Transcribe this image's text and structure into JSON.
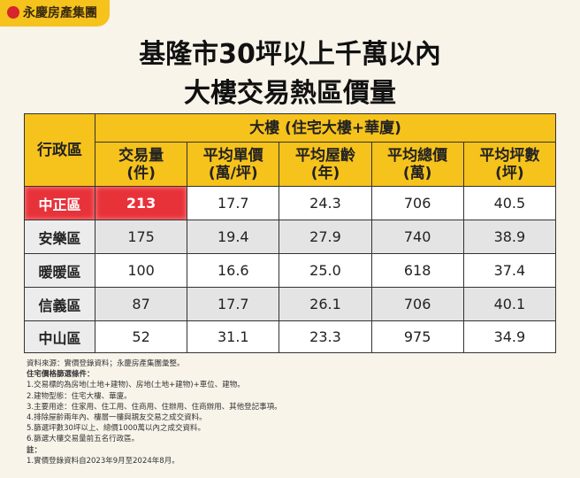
{
  "logo": "永慶房產集團",
  "title": [
    "基隆市30坪以上千萬以內",
    "大樓交易熱區價量"
  ],
  "table": {
    "district_header": "行政區",
    "group_header": "大樓 (住宅大樓+華廈)",
    "columns": [
      [
        "交易量",
        "(件)"
      ],
      [
        "平均單價",
        "(萬/坪)"
      ],
      [
        "平均屋齡",
        "(年)"
      ],
      [
        "平均總價",
        "(萬)"
      ],
      [
        "平均坪數",
        "(坪)"
      ]
    ],
    "rows": [
      [
        "中正區",
        "213",
        "17.7",
        "24.3",
        "706",
        "40.5"
      ],
      [
        "安樂區",
        "175",
        "19.4",
        "27.9",
        "740",
        "38.9"
      ],
      [
        "暖暖區",
        "100",
        "16.6",
        "25.0",
        "618",
        "37.4"
      ],
      [
        "信義區",
        "87",
        "17.7",
        "26.1",
        "706",
        "40.1"
      ],
      [
        "中山區",
        "52",
        "31.1",
        "23.3",
        "975",
        "34.9"
      ]
    ]
  },
  "notes": {
    "source": "資料來源：實價登錄資料；永慶房產集團彙整。",
    "criteria_title": "住宅價格篩選條件：",
    "criteria": [
      "1.交易標的為房地(土地+建物)、房地(土地+建物)+車位、建物。",
      "2.建物型態：住宅大樓、華廈。",
      "3.主要用途：住家用、住工用、住商用、住辦用、住商辦用、其他登記事項。",
      "4.排除屋齡兩年內、樓層一樓與親友交易之成交資料。",
      "5.篩選坪數30坪以上、總價1000萬以內之成交資料。",
      "6.篩選大樓交易量前五名行政區。"
    ],
    "remark_title": "註：",
    "remarks": [
      "1.實價登錄資料自2023年9月至2024年8月。"
    ]
  }
}
